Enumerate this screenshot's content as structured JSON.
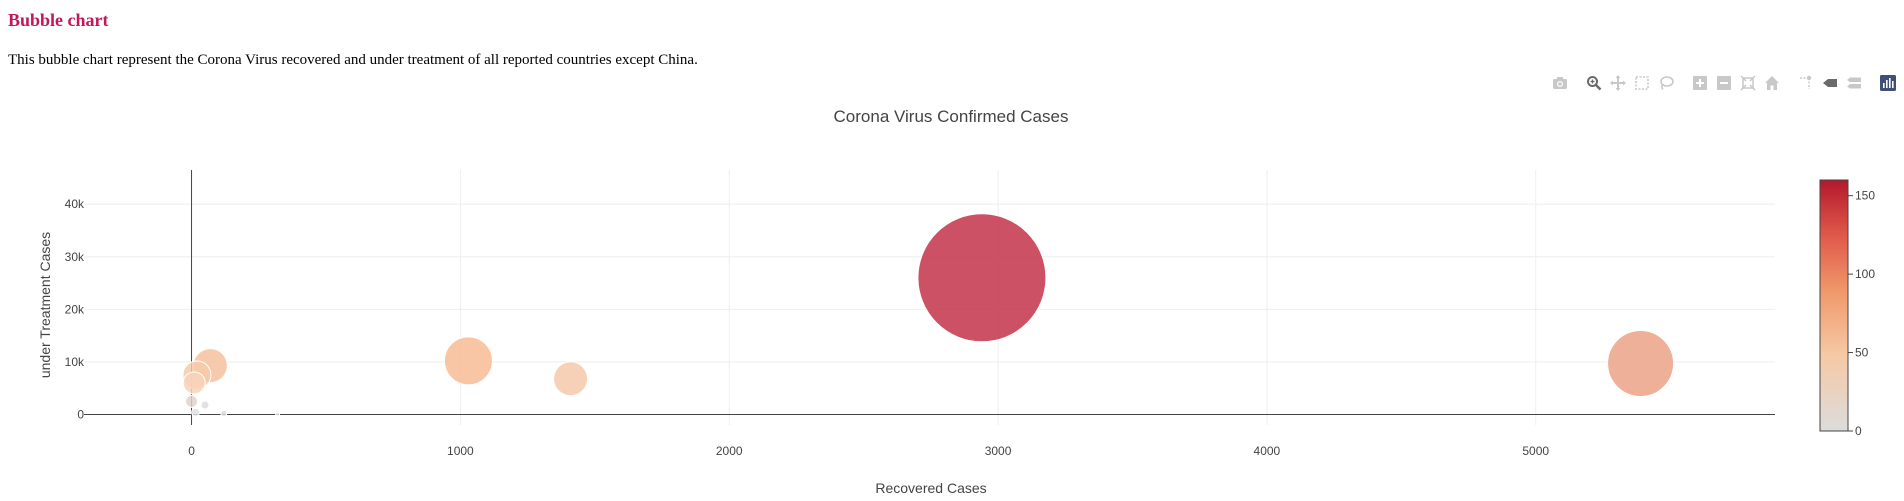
{
  "page": {
    "heading": "Bubble chart",
    "description": "This bubble chart represent the Corona Virus recovered and under treatment of all reported countries except China."
  },
  "modebar": [
    {
      "name": "camera-icon"
    },
    {
      "name": "zoom-icon"
    },
    {
      "name": "pan-icon"
    },
    {
      "name": "box-select-icon"
    },
    {
      "name": "lasso-select-icon"
    },
    {
      "name": "zoom-in-icon"
    },
    {
      "name": "zoom-out-icon"
    },
    {
      "name": "autoscale-icon"
    },
    {
      "name": "reset-axes-icon"
    },
    {
      "name": "spike-lines-icon"
    },
    {
      "name": "hover-closest-icon"
    },
    {
      "name": "hover-compare-icon"
    },
    {
      "name": "plotly-logo-icon"
    }
  ],
  "chart_data": {
    "type": "scatter",
    "title": "Corona Virus Confirmed Cases",
    "xlabel": "Recovered Cases",
    "ylabel": "under Treatment Cases",
    "xlim": [
      -400,
      5890
    ],
    "ylim": [
      -2000,
      46500
    ],
    "x_ticks": [
      0,
      1000,
      2000,
      3000,
      4000,
      5000
    ],
    "x_tick_labels": [
      "0",
      "1000",
      "2000",
      "3000",
      "4000",
      "5000"
    ],
    "y_ticks": [
      0,
      10000,
      20000,
      30000,
      40000
    ],
    "y_tick_labels": [
      "0",
      "10k",
      "20k",
      "30k",
      "40k"
    ],
    "grid": true,
    "colorscale": {
      "min": 0,
      "max": 160,
      "ticks": [
        0,
        50,
        100,
        150
      ],
      "tick_labels": [
        "0",
        "50",
        "100",
        "150"
      ],
      "stops": [
        [
          "#dcdcdc",
          0
        ],
        [
          "#f6c9a6",
          0.3
        ],
        [
          "#f09a6c",
          0.55
        ],
        [
          "#e0584a",
          0.78
        ],
        [
          "#b2182b",
          1
        ]
      ]
    },
    "points": [
      {
        "x": 2940,
        "y": 26000,
        "r": 64,
        "color": "#c3334a"
      },
      {
        "x": 5390,
        "y": 9700,
        "r": 33,
        "color": "#eba286"
      },
      {
        "x": 1030,
        "y": 10200,
        "r": 24,
        "color": "#f7bb95"
      },
      {
        "x": 70,
        "y": 9300,
        "r": 17,
        "color": "#f5c19f"
      },
      {
        "x": 20,
        "y": 7500,
        "r": 14,
        "color": "#f7caa9"
      },
      {
        "x": 10,
        "y": 6000,
        "r": 11,
        "color": "#f8d4bb"
      },
      {
        "x": 1410,
        "y": 6800,
        "r": 17,
        "color": "#f6c9aa"
      },
      {
        "x": 0,
        "y": 2500,
        "r": 6,
        "color": "#e2d2cb"
      },
      {
        "x": 50,
        "y": 1800,
        "r": 4,
        "color": "#dcdcdc"
      },
      {
        "x": 120,
        "y": 200,
        "r": 3,
        "color": "#dcdcdc"
      },
      {
        "x": 15,
        "y": 400,
        "r": 4,
        "color": "#e0e0e0"
      },
      {
        "x": 320,
        "y": 100,
        "r": 2,
        "color": "#e4e4e4"
      }
    ]
  }
}
